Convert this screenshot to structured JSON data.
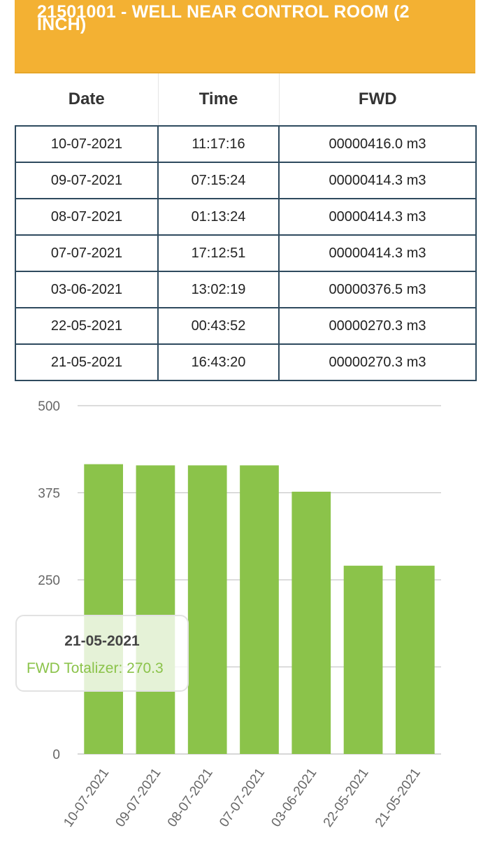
{
  "header": {
    "title": "21501001 - WELL NEAR CONTROL ROOM (2 INCH)"
  },
  "table": {
    "columns": [
      "Date",
      "Time",
      "FWD"
    ],
    "rows": [
      [
        "10-07-2021",
        "11:17:16",
        "00000416.0 m3"
      ],
      [
        "09-07-2021",
        "07:15:24",
        "00000414.3 m3"
      ],
      [
        "08-07-2021",
        "01:13:24",
        "00000414.3 m3"
      ],
      [
        "07-07-2021",
        "17:12:51",
        "00000414.3 m3"
      ],
      [
        "03-06-2021",
        "13:02:19",
        "00000376.5 m3"
      ],
      [
        "22-05-2021",
        "00:43:52",
        "00000270.3 m3"
      ],
      [
        "21-05-2021",
        "16:43:20",
        "00000270.3 m3"
      ]
    ]
  },
  "chart_data": {
    "type": "bar",
    "categories": [
      "10-07-2021",
      "09-07-2021",
      "08-07-2021",
      "07-07-2021",
      "03-06-2021",
      "22-05-2021",
      "21-05-2021"
    ],
    "series": [
      {
        "values": [
          416.0,
          414.3,
          414.3,
          414.3,
          376.5,
          270.3,
          270.3
        ],
        "color": "#8bc34a"
      }
    ],
    "yticks": [
      "0",
      "250",
      "375",
      "500"
    ],
    "ylim": [
      0,
      500
    ],
    "grid": true,
    "title": "",
    "xlabel": "",
    "ylabel": ""
  },
  "tooltip": {
    "date": "21-05-2021",
    "label": "FWD Totalizer: 270.3"
  },
  "colors": {
    "header": "#f3b133",
    "bar": "#8bc34a",
    "border": "#2e4a5e"
  }
}
